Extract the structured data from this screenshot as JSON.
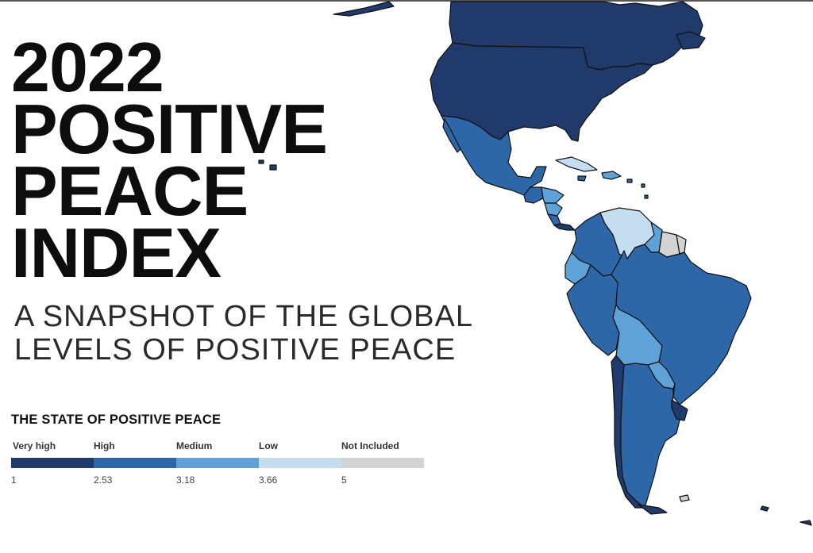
{
  "title": {
    "lines": [
      "2022",
      "POSITIVE",
      "PEACE",
      "INDEX"
    ]
  },
  "subtitle": {
    "lines": [
      "A SNAPSHOT OF THE GLOBAL",
      "LEVELS OF POSITIVE PEACE"
    ]
  },
  "legend": {
    "title": "THE STATE OF POSITIVE PEACE",
    "categories": [
      {
        "label": "Very high",
        "color": "#1f3a6b"
      },
      {
        "label": "High",
        "color": "#2d67a8"
      },
      {
        "label": "Medium",
        "color": "#5fa2d8"
      },
      {
        "label": "Low",
        "color": "#c5ddf1"
      },
      {
        "label": "Not Included",
        "color": "#d3d3d3"
      }
    ],
    "ticks": [
      "1",
      "2.53",
      "3.18",
      "3.66",
      "5"
    ]
  },
  "map": {
    "region": "Americas",
    "colors": {
      "very_high": "#1f3a6b",
      "high": "#2d67a8",
      "medium": "#5fa2d8",
      "low": "#c5ddf1",
      "not_included": "#d3d3d3",
      "border": "#111111"
    }
  }
}
